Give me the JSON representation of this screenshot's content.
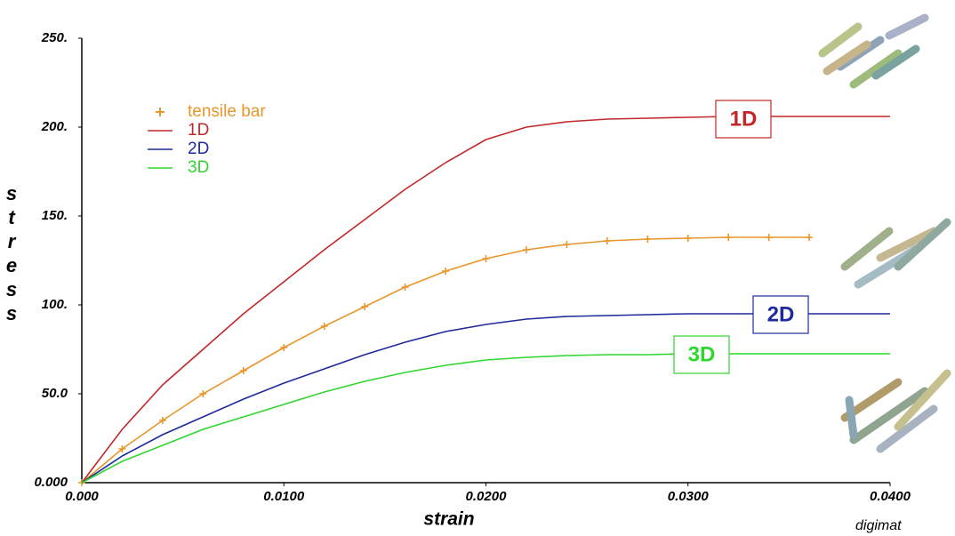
{
  "chart_data": {
    "type": "line",
    "x_label": "strain",
    "y_label": "stress",
    "watermark": "digimat",
    "x": [
      0,
      0.002,
      0.004,
      0.006,
      0.008,
      0.01,
      0.012,
      0.014,
      0.016,
      0.018,
      0.02,
      0.022,
      0.024,
      0.026,
      0.028,
      0.03,
      0.032,
      0.034,
      0.036,
      0.038,
      0.04
    ],
    "series": [
      {
        "name": "tensile bar",
        "color": "#e8962a",
        "marker": "+",
        "values": [
          0,
          19,
          35,
          50,
          63,
          76,
          88,
          99,
          110,
          119,
          126,
          131,
          134,
          136,
          137,
          137.5,
          138,
          138,
          138,
          null,
          null
        ]
      },
      {
        "name": "1D",
        "color": "#c0282a",
        "values": [
          0,
          30,
          55,
          75,
          95,
          113,
          131,
          148,
          165,
          180,
          193,
          200,
          203,
          204.5,
          205,
          205.5,
          206,
          206,
          206,
          206,
          206
        ]
      },
      {
        "name": "2D",
        "color": "#1f2a9c",
        "values": [
          0,
          15,
          27,
          37,
          47,
          56,
          64,
          72,
          79,
          85,
          89,
          92,
          93.5,
          94,
          94.5,
          95,
          95,
          95,
          95,
          95,
          95
        ]
      },
      {
        "name": "3D",
        "color": "#2fd62f",
        "values": [
          0,
          12,
          21,
          30,
          37,
          44,
          51,
          57,
          62,
          66,
          69,
          70.5,
          71.5,
          72,
          72,
          72.5,
          72.5,
          72.5,
          72.5,
          72.5,
          72.5
        ]
      }
    ],
    "xlim": [
      0,
      0.04
    ],
    "ylim": [
      0,
      250
    ],
    "xticks": [
      {
        "value": 0,
        "label": "0.000"
      },
      {
        "value": 0.01,
        "label": "0.0100"
      },
      {
        "value": 0.02,
        "label": "0.0200"
      },
      {
        "value": 0.03,
        "label": "0.0300"
      },
      {
        "value": 0.04,
        "label": "0.0400"
      }
    ],
    "yticks": [
      {
        "value": 0,
        "label": "0.000"
      },
      {
        "value": 50,
        "label": "50.0"
      },
      {
        "value": 100,
        "label": "100."
      },
      {
        "value": 150,
        "label": "150."
      },
      {
        "value": 200,
        "label": "200."
      },
      {
        "value": 250,
        "label": "250."
      }
    ],
    "grid": false
  }
}
